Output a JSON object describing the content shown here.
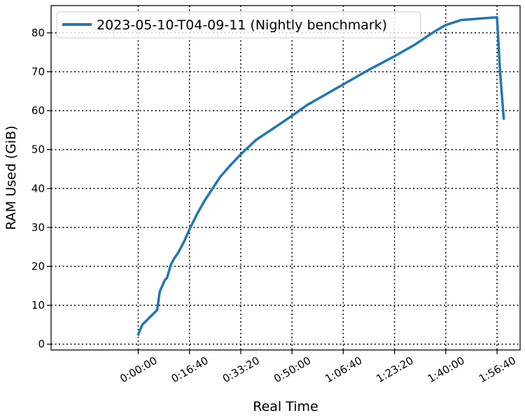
{
  "chart_data": {
    "type": "line",
    "title": "",
    "xlabel": "Real Time",
    "ylabel": "RAM Used (GiB)",
    "x_unit": "seconds",
    "xlim": [
      -1700,
      7450
    ],
    "ylim": [
      -1.5,
      87
    ],
    "xticks": [
      {
        "value": 0,
        "label": "0:00:00"
      },
      {
        "value": 1000,
        "label": "0:16:40"
      },
      {
        "value": 2000,
        "label": "0:33:20"
      },
      {
        "value": 3000,
        "label": "0:50:00"
      },
      {
        "value": 4000,
        "label": "1:06:40"
      },
      {
        "value": 5000,
        "label": "1:23:20"
      },
      {
        "value": 6000,
        "label": "1:40:00"
      },
      {
        "value": 7000,
        "label": "1:56:40"
      }
    ],
    "yticks": [
      0,
      10,
      20,
      30,
      40,
      50,
      60,
      70,
      80
    ],
    "grid": true,
    "legend_position": "top-left",
    "series": [
      {
        "name": "2023-05-10-T04-09-11 (Nightly benchmark)",
        "color": "#1f77b4",
        "x": [
          0,
          80,
          370,
          420,
          520,
          560,
          640,
          700,
          780,
          900,
          1000,
          1150,
          1300,
          1450,
          1600,
          1800,
          2000,
          2300,
          2700,
          3000,
          3300,
          3700,
          4100,
          4500,
          5000,
          5400,
          5800,
          6000,
          6300,
          6500,
          6800,
          7000,
          7060,
          7130
        ],
        "y": [
          2.5,
          5,
          8.8,
          13.5,
          16.5,
          17,
          20.5,
          22,
          23.5,
          26.5,
          29.5,
          33.5,
          37,
          40,
          43,
          46,
          48.8,
          52.5,
          56,
          58.7,
          61.5,
          64.5,
          67.5,
          70.5,
          74,
          77,
          80.5,
          82,
          83.3,
          83.5,
          83.8,
          84,
          70,
          58
        ]
      }
    ]
  }
}
